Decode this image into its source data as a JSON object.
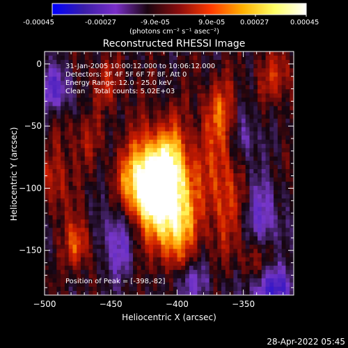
{
  "colorbar": {
    "tick_labels": [
      "-0.00045",
      "-0.00027",
      "-9.0e-05",
      "9.0e-05",
      "0.00027",
      "0.00045"
    ],
    "unit_label": "(photons cm⁻² s⁻¹ asec⁻²)",
    "colors": [
      "#0000ff",
      "#3a1ea8",
      "#7a2fc8",
      "#1a0510",
      "#8b0d0d",
      "#ff3a00",
      "#ffb000",
      "#ffff66",
      "#ffffff"
    ]
  },
  "annotations": {
    "time": "31-Jan-2005 10:00:12.000 to 10:06:12.000",
    "detectors": "Detectors: 3F 4F 5F 6F 7F 8F, Att 0",
    "energy": "Energy Range: 12.0 - 25.0 keV",
    "clean": "Clean    Total counts: 5.02E+03",
    "peak": "Position of Peak = [-398,-82]"
  },
  "footer": {
    "date": "28-Apr-2022 05:45"
  },
  "chart_data": {
    "type": "heatmap",
    "title": "Reconstructed RHESSI Image",
    "xlabel": "Heliocentric X (arcsec)",
    "ylabel": "Heliocentric Y (arcsec)",
    "xlim": [
      -500,
      -312
    ],
    "ylim": [
      -186,
      10
    ],
    "x_ticks": [
      -500,
      -450,
      -400,
      -350
    ],
    "y_ticks": [
      0,
      -50,
      -100,
      -150
    ],
    "x_tick_labels": [
      "−500",
      "−450",
      "−400",
      "−350"
    ],
    "y_tick_labels": [
      "0",
      "−50",
      "−100",
      "−150"
    ],
    "zlim": [
      -0.00045,
      0.00045
    ],
    "peak": [
      -398,
      -82
    ],
    "hot_spots": [
      {
        "x": -408,
        "y": -90,
        "value": 0.00045,
        "sx": 14,
        "sy": 28
      },
      {
        "x": -428,
        "y": -98,
        "value": 0.00036,
        "sx": 12,
        "sy": 22
      },
      {
        "x": -402,
        "y": -132,
        "value": 0.00028,
        "sx": 12,
        "sy": 26
      },
      {
        "x": -365,
        "y": -100,
        "value": 0.0002,
        "sx": 10,
        "sy": 35
      },
      {
        "x": -368,
        "y": -40,
        "value": 0.00018,
        "sx": 10,
        "sy": 20
      },
      {
        "x": -475,
        "y": -145,
        "value": 0.00022,
        "sx": 7,
        "sy": 14
      },
      {
        "x": -490,
        "y": -95,
        "value": 0.00015,
        "sx": 8,
        "sy": 20
      },
      {
        "x": -340,
        "y": -160,
        "value": 0.00014,
        "sx": 10,
        "sy": 16
      },
      {
        "x": -325,
        "y": -10,
        "value": 0.00015,
        "sx": 10,
        "sy": 16
      },
      {
        "x": -452,
        "y": -15,
        "value": 0.00012,
        "sx": 12,
        "sy": 14
      },
      {
        "x": -470,
        "y": -60,
        "value": 0.0001,
        "sx": 10,
        "sy": 16
      }
    ],
    "cold_spots": [
      {
        "x": -328,
        "y": -180,
        "value": -0.0003,
        "sx": 14,
        "sy": 12
      },
      {
        "x": -335,
        "y": -125,
        "value": -0.00022,
        "sx": 8,
        "sy": 20
      },
      {
        "x": -445,
        "y": -140,
        "value": -0.0002,
        "sx": 9,
        "sy": 22
      },
      {
        "x": -492,
        "y": -20,
        "value": -0.00024,
        "sx": 9,
        "sy": 12
      },
      {
        "x": -390,
        "y": -175,
        "value": -0.00018,
        "sx": 12,
        "sy": 12
      },
      {
        "x": -350,
        "y": -60,
        "value": -0.00016,
        "sx": 8,
        "sy": 18
      }
    ]
  }
}
